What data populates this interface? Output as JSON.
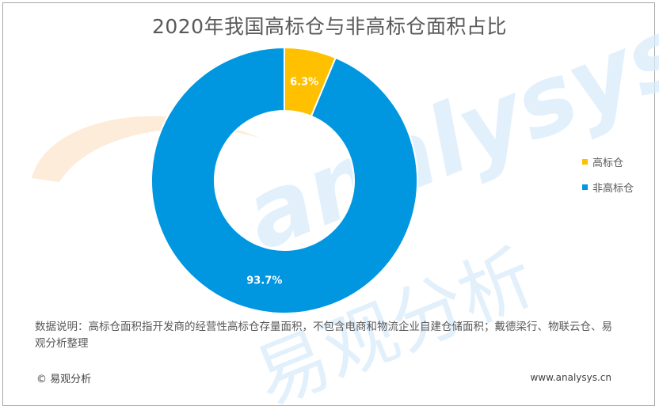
{
  "chart_data": {
    "type": "pie",
    "title": "2020年我国高标仓与非高标仓面积占比",
    "categories": [
      "高标仓",
      "非高标仓"
    ],
    "values": [
      6.3,
      93.7
    ],
    "value_labels": [
      "6.3%",
      "93.7%"
    ],
    "colors": [
      "#ffc000",
      "#0096e0"
    ],
    "donut": true,
    "legend_position": "right"
  },
  "note": "数据说明：高标仓面积指开发商的经营性高标仓存量面积，不包含电商和物流企业自建仓储面积；戴德梁行、物联云仓、易观分析整理",
  "footer": {
    "copyright": "© 易观分析",
    "url": "www.analysys.cn"
  },
  "watermark": {
    "text_latin": "analysys",
    "text_cn": "易观分析"
  }
}
